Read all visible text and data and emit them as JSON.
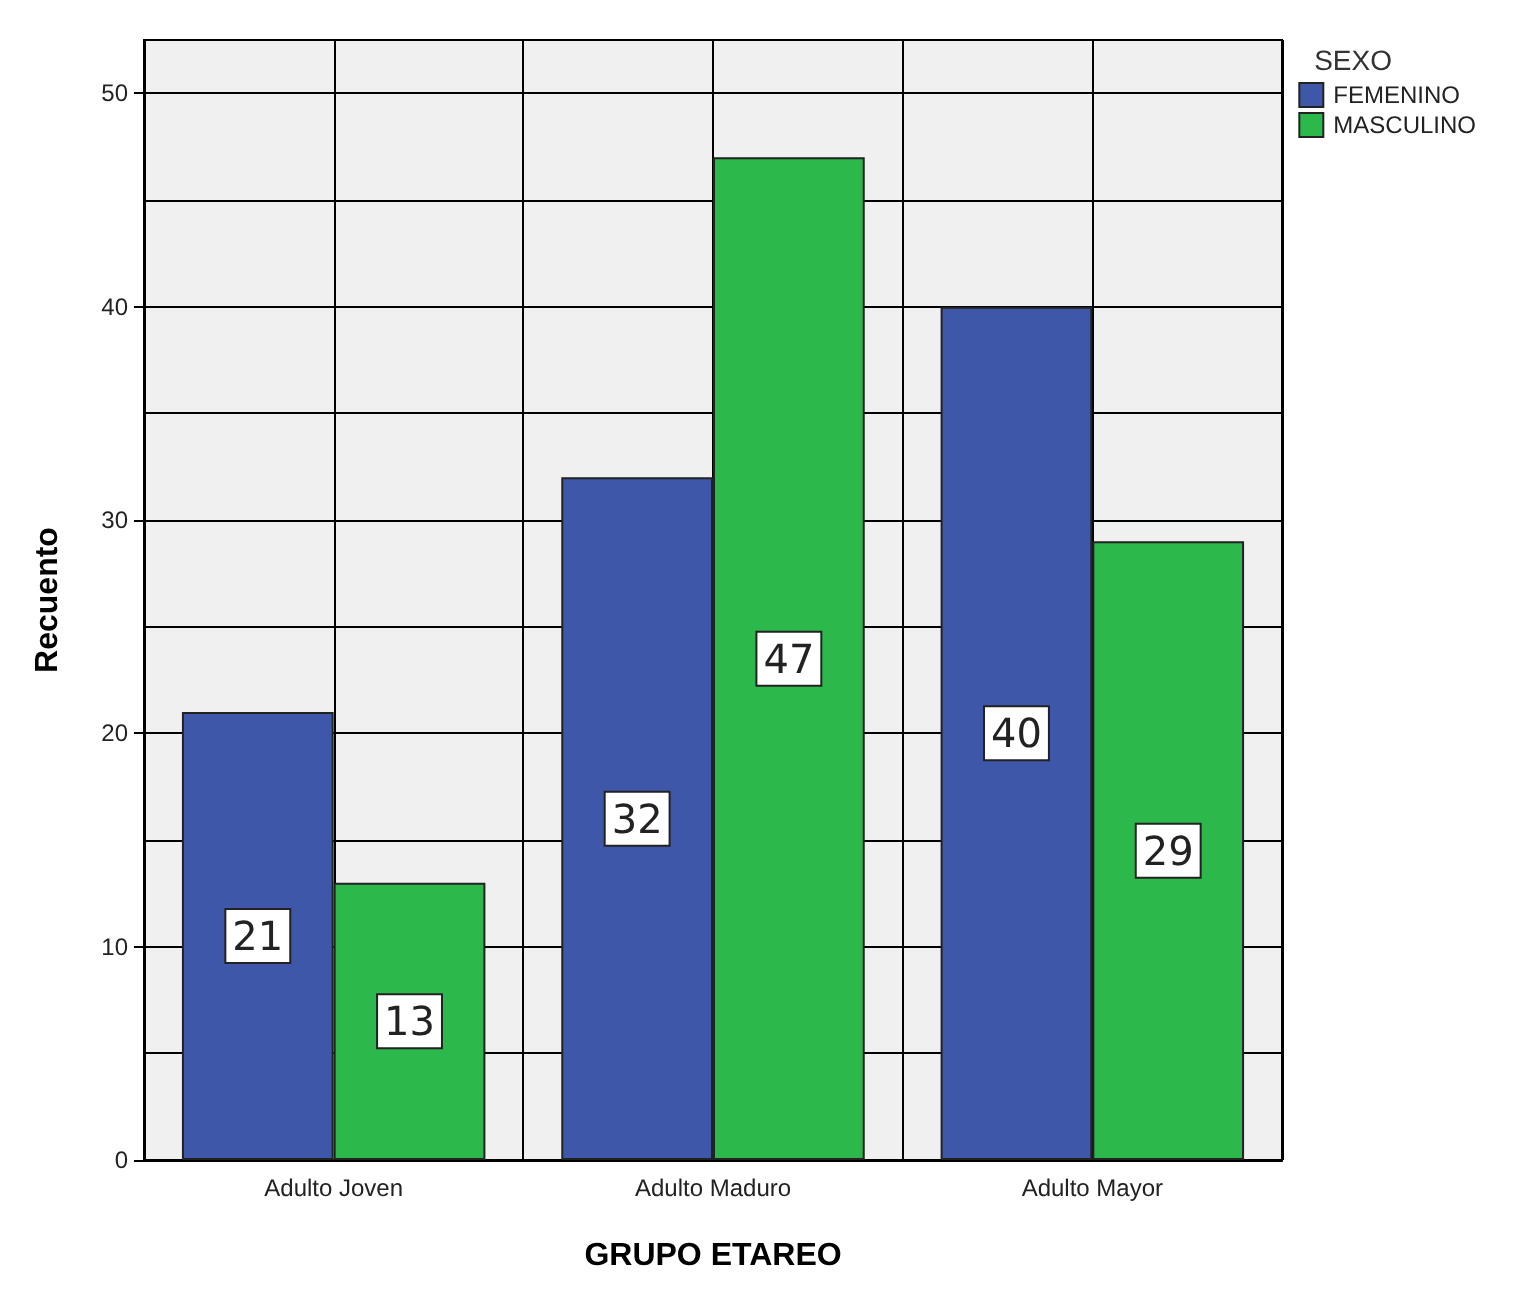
{
  "chart_data": {
    "type": "bar",
    "xlabel": "GRUPO ETAREO",
    "ylabel": "Recuento",
    "legend_title": "SEXO",
    "categories": [
      "Adulto Joven",
      "Adulto Maduro",
      "Adulto Mayor"
    ],
    "series": [
      {
        "name": "FEMENINO",
        "color": "#3f57a9",
        "values": [
          21,
          32,
          40
        ]
      },
      {
        "name": "MASCULINO",
        "color": "#2db84b",
        "values": [
          13,
          47,
          29
        ]
      }
    ],
    "ylim": [
      0,
      52.5
    ],
    "yticks": [
      0,
      {
        "value": 5,
        "label": null
      },
      10,
      {
        "value": 15,
        "label": null
      },
      20,
      {
        "value": 25,
        "label": null
      },
      30,
      {
        "value": 35,
        "label": null
      },
      40,
      {
        "value": 45,
        "label": null
      },
      50
    ],
    "grid": true,
    "legend": "top right",
    "data_labels": true
  }
}
